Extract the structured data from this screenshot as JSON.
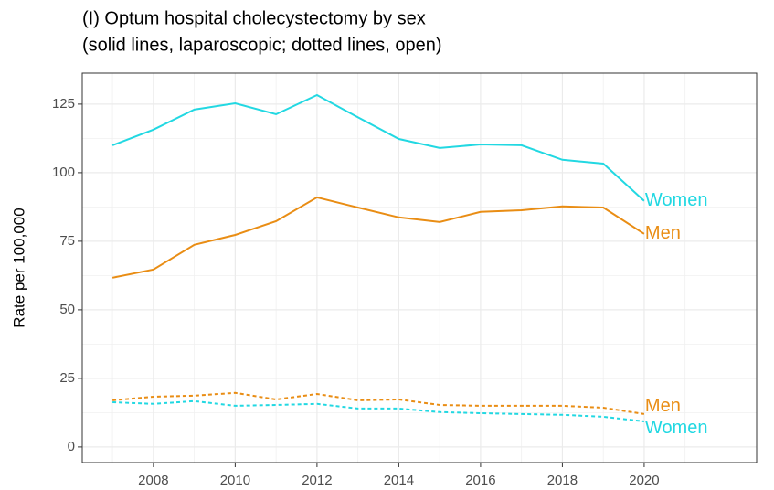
{
  "chart_data": {
    "type": "line",
    "title": "(I) Optum hospital cholecystectomy by sex",
    "subtitle": "(solid lines, laparoscopic; dotted lines, open)",
    "y_label": "Rate per 100,000",
    "x": [
      2007,
      2008,
      2009,
      2010,
      2011,
      2012,
      2013,
      2014,
      2015,
      2016,
      2017,
      2018,
      2019,
      2020
    ],
    "series": [
      {
        "name": "Women",
        "color": "#22d8e2",
        "dash": false,
        "values": [
          110,
          115.7,
          123,
          125.3,
          121.3,
          128.3,
          120.2,
          112.3,
          109,
          110.3,
          110,
          104.7,
          103.3,
          89.7
        ]
      },
      {
        "name": "Men",
        "color": "#e98d14",
        "dash": false,
        "values": [
          61.7,
          64.7,
          73.7,
          77.3,
          82.3,
          91,
          87.3,
          83.7,
          82,
          85.7,
          86.3,
          87.7,
          87.3,
          77.7
        ]
      },
      {
        "name": "Men",
        "color": "#e98d14",
        "dash": true,
        "values": [
          17,
          18.3,
          18.7,
          19.7,
          17.3,
          19.3,
          17,
          17.3,
          15.3,
          15,
          15,
          15,
          14.3,
          12
        ]
      },
      {
        "name": "Women",
        "color": "#22d8e2",
        "dash": true,
        "values": [
          16.3,
          15.7,
          16.7,
          15,
          15.3,
          15.7,
          14,
          14,
          12.7,
          12.3,
          12,
          11.7,
          11,
          9.3
        ]
      }
    ],
    "xlim": [
      2006.26,
      2022.75
    ],
    "ylim": [
      -5.7,
      136.3
    ],
    "xticks": [
      2008,
      2010,
      2012,
      2014,
      2016,
      2018,
      2020
    ],
    "yticks": [
      0,
      25,
      50,
      75,
      100,
      125
    ],
    "grid": true
  }
}
